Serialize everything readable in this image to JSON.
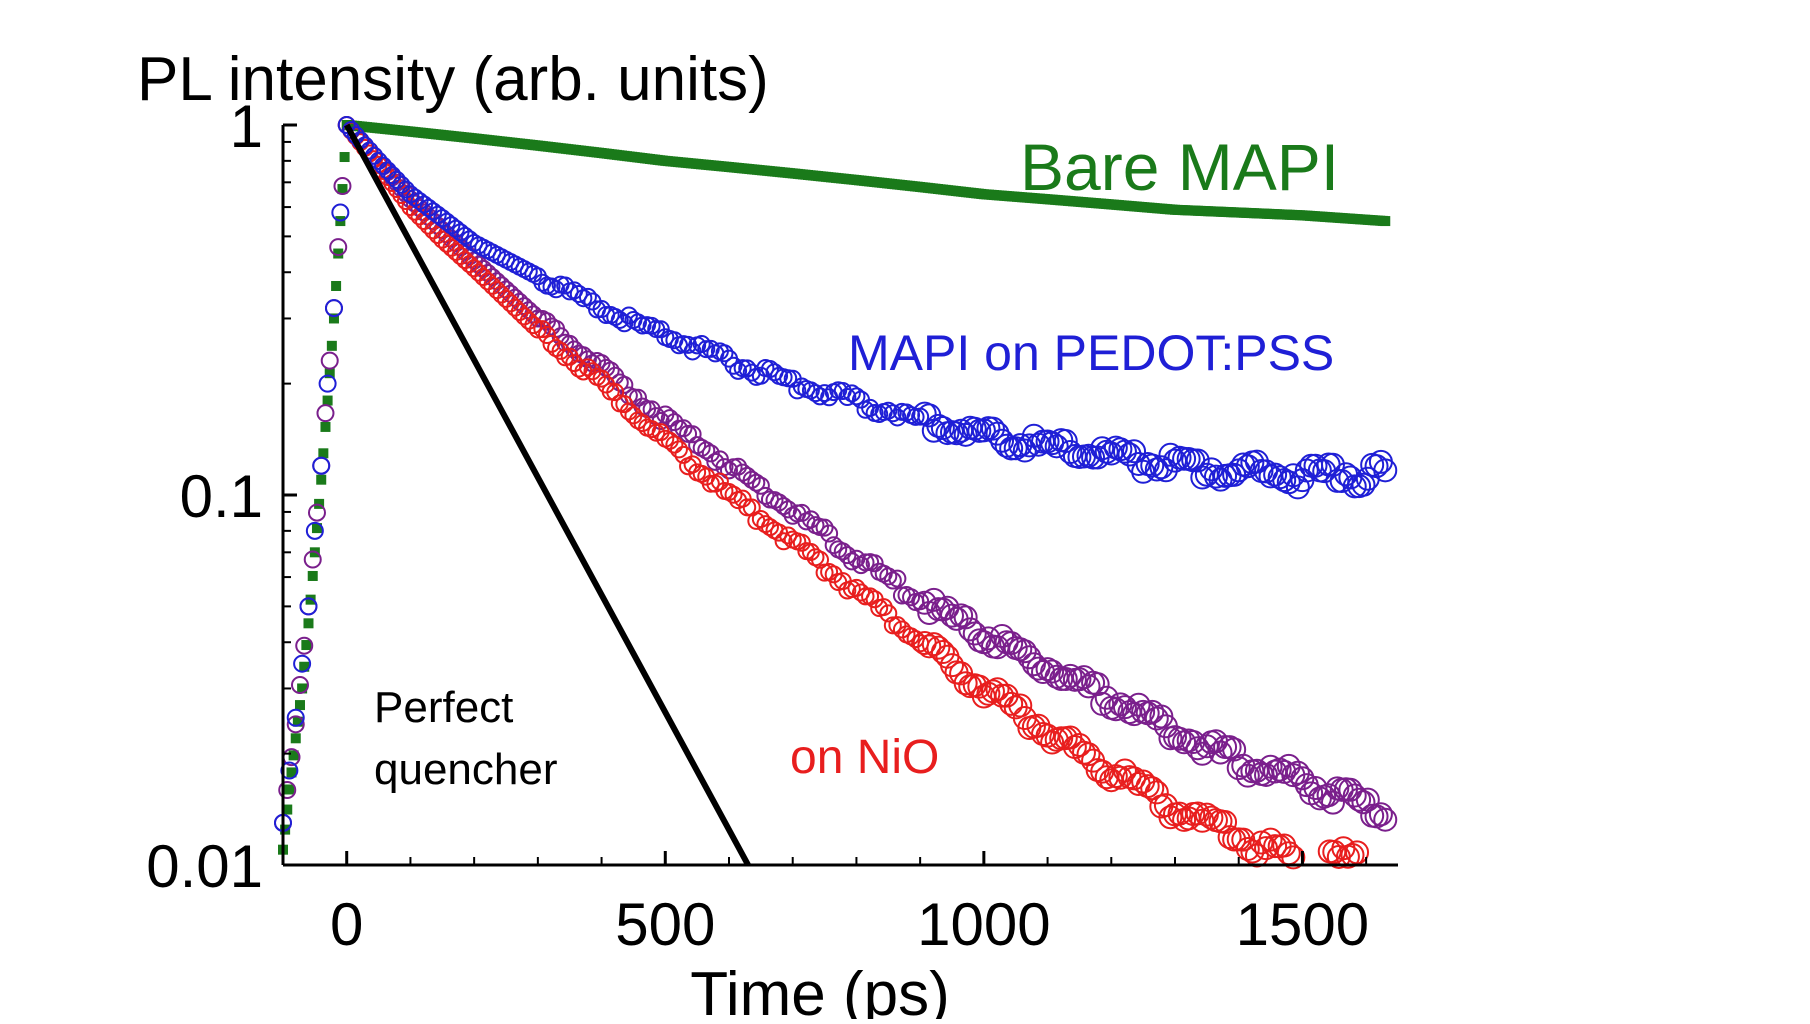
{
  "chart_data": {
    "type": "scatter",
    "ylabel": "PL intensity (arb. units)",
    "xlabel": "Time (ps)",
    "xlim": [
      -100,
      1650
    ],
    "ylim": [
      0.01,
      1
    ],
    "y_scale": "log",
    "x_ticks": [
      "0",
      "500",
      "1000",
      "1500"
    ],
    "x_tick_values": [
      0,
      500,
      1000,
      1500
    ],
    "y_ticks": [
      "0.01",
      "0.1",
      "1"
    ],
    "y_tick_values": [
      0.01,
      0.1,
      1
    ],
    "grid": false,
    "series": [
      {
        "name": "Bare MAPI",
        "color": "#1a7a1a",
        "marker": "square",
        "label_color": "#1a7a1a",
        "points": [
          [
            -100,
            0.011
          ],
          [
            -90,
            0.016
          ],
          [
            -80,
            0.022
          ],
          [
            -70,
            0.03
          ],
          [
            -60,
            0.045
          ],
          [
            -50,
            0.07
          ],
          [
            -40,
            0.11
          ],
          [
            -30,
            0.18
          ],
          [
            -20,
            0.3
          ],
          [
            -10,
            0.55
          ],
          [
            0,
            1.0
          ],
          [
            100,
            0.96
          ],
          [
            200,
            0.92
          ],
          [
            300,
            0.88
          ],
          [
            400,
            0.84
          ],
          [
            500,
            0.8
          ],
          [
            600,
            0.77
          ],
          [
            700,
            0.74
          ],
          [
            800,
            0.71
          ],
          [
            900,
            0.68
          ],
          [
            1000,
            0.65
          ],
          [
            1100,
            0.63
          ],
          [
            1200,
            0.61
          ],
          [
            1300,
            0.59
          ],
          [
            1400,
            0.58
          ],
          [
            1500,
            0.57
          ],
          [
            1630,
            0.55
          ]
        ]
      },
      {
        "name": "MAPI on PEDOT:PSS",
        "color": "#1f1fd6",
        "marker": "circle",
        "label_color": "#1f1fd6",
        "points": [
          [
            -100,
            0.013
          ],
          [
            -90,
            0.018
          ],
          [
            -80,
            0.025
          ],
          [
            -70,
            0.035
          ],
          [
            -60,
            0.05
          ],
          [
            -50,
            0.08
          ],
          [
            -40,
            0.12
          ],
          [
            -30,
            0.2
          ],
          [
            -20,
            0.32
          ],
          [
            -10,
            0.58
          ],
          [
            0,
            1.0
          ],
          [
            50,
            0.8
          ],
          [
            100,
            0.65
          ],
          [
            150,
            0.56
          ],
          [
            200,
            0.48
          ],
          [
            300,
            0.39
          ],
          [
            400,
            0.32
          ],
          [
            500,
            0.27
          ],
          [
            600,
            0.23
          ],
          [
            700,
            0.2
          ],
          [
            800,
            0.18
          ],
          [
            900,
            0.16
          ],
          [
            1000,
            0.145
          ],
          [
            1100,
            0.135
          ],
          [
            1200,
            0.127
          ],
          [
            1300,
            0.12
          ],
          [
            1400,
            0.116
          ],
          [
            1500,
            0.113
          ],
          [
            1630,
            0.115
          ]
        ]
      },
      {
        "name": "",
        "color": "#7a1f8c",
        "marker": "circle",
        "label_color": "#7a1f8c",
        "points": [
          [
            -100,
            0.013
          ],
          [
            -80,
            0.024
          ],
          [
            -60,
            0.05
          ],
          [
            -40,
            0.12
          ],
          [
            -20,
            0.32
          ],
          [
            0,
            1.0
          ],
          [
            50,
            0.8
          ],
          [
            100,
            0.63
          ],
          [
            150,
            0.52
          ],
          [
            200,
            0.43
          ],
          [
            300,
            0.3
          ],
          [
            400,
            0.22
          ],
          [
            500,
            0.16
          ],
          [
            600,
            0.12
          ],
          [
            700,
            0.09
          ],
          [
            800,
            0.068
          ],
          [
            900,
            0.052
          ],
          [
            1000,
            0.042
          ],
          [
            1100,
            0.034
          ],
          [
            1200,
            0.028
          ],
          [
            1300,
            0.023
          ],
          [
            1400,
            0.019
          ],
          [
            1500,
            0.017
          ],
          [
            1630,
            0.014
          ]
        ]
      },
      {
        "name": "on NiO",
        "color": "#e81e1e",
        "marker": "circle",
        "label_color": "#e81e1e",
        "points": [
          [
            0,
            1.0
          ],
          [
            50,
            0.78
          ],
          [
            100,
            0.6
          ],
          [
            150,
            0.49
          ],
          [
            200,
            0.41
          ],
          [
            300,
            0.28
          ],
          [
            400,
            0.2
          ],
          [
            500,
            0.14
          ],
          [
            600,
            0.1
          ],
          [
            700,
            0.075
          ],
          [
            800,
            0.055
          ],
          [
            900,
            0.04
          ],
          [
            1000,
            0.03
          ],
          [
            1100,
            0.023
          ],
          [
            1200,
            0.018
          ],
          [
            1300,
            0.014
          ],
          [
            1400,
            0.012
          ],
          [
            1500,
            0.01
          ],
          [
            1600,
            0.0105
          ]
        ]
      },
      {
        "name": "Perfect quencher",
        "color": "#000000",
        "marker": "line",
        "label_color": "#000000",
        "points": [
          [
            0,
            1.0
          ],
          [
            630,
            0.01
          ]
        ]
      }
    ]
  }
}
